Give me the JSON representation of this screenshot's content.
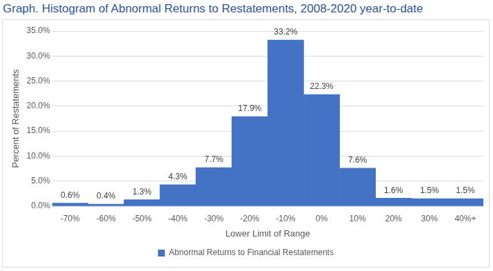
{
  "chart_data": {
    "type": "bar",
    "title": "Graph. Histogram of Abnormal Returns to Restatements, 2008-2020 year-to-date",
    "x_label": "Lower Limit of Range",
    "y_label": "Percent of Restatements",
    "categories": [
      "-70%",
      "-60%",
      "-50%",
      "-40%",
      "-30%",
      "-20%",
      "-10%",
      "0%",
      "10%",
      "20%",
      "30%",
      "40%+"
    ],
    "series": [
      {
        "name": "Abnormal Returns to Financial Restatements",
        "color": "#4472c4",
        "values": [
          0.6,
          0.4,
          1.3,
          4.3,
          7.7,
          17.9,
          33.2,
          22.3,
          7.6,
          1.6,
          1.5,
          1.5
        ],
        "value_labels": [
          "0.6%",
          "0.4%",
          "1.3%",
          "4.3%",
          "7.7%",
          "17.9%",
          "33.2%",
          "22.3%",
          "7.6%",
          "1.6%",
          "1.5%",
          "1.5%"
        ]
      }
    ],
    "ylim": [
      0,
      35
    ],
    "yticks": [
      {
        "value": 0,
        "label": "0.0%"
      },
      {
        "value": 5,
        "label": "5.0%"
      },
      {
        "value": 10,
        "label": "10.0%"
      },
      {
        "value": 15,
        "label": "15.0%"
      },
      {
        "value": 20,
        "label": "20.0%"
      },
      {
        "value": 25,
        "label": "25.0%"
      },
      {
        "value": 30,
        "label": "30.0%"
      },
      {
        "value": 35,
        "label": "35.0%"
      }
    ],
    "grid": true,
    "legend": "bottom",
    "data_labels": true
  }
}
